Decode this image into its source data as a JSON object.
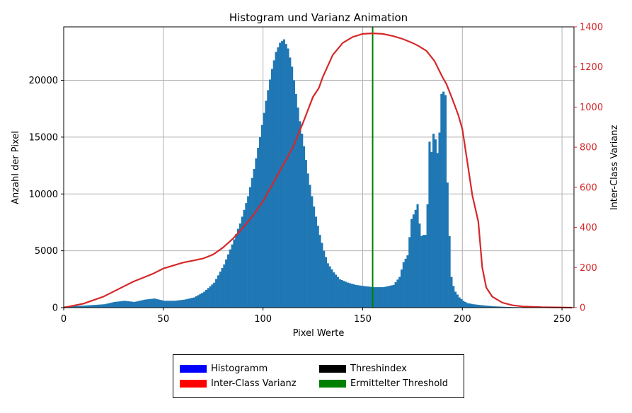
{
  "chart_data": {
    "type": "bar",
    "title": "Histogram und Varianz Animation",
    "xlabel": "Pixel Werte",
    "ylabel": "Anzahl der Pixel",
    "y2label": "Inter-Class Varianz",
    "xlim": [
      0,
      256
    ],
    "ylim": [
      0,
      24700
    ],
    "y2lim": [
      0,
      1400
    ],
    "xticks": [
      0,
      50,
      100,
      150,
      200,
      250
    ],
    "yticks": [
      0,
      5000,
      10000,
      15000,
      20000
    ],
    "y2ticks": [
      0,
      200,
      400,
      600,
      800,
      1000,
      1200,
      1400
    ],
    "grid": true,
    "legend_placement": "bottom-center",
    "colors": {
      "histogram": "#1f77b4",
      "variance": "#d62728",
      "threshold": "#008000",
      "right_axis": "#d62728"
    },
    "histogram_keypoints": {
      "x": [
        0,
        10,
        20,
        25,
        30,
        35,
        40,
        45,
        50,
        55,
        60,
        65,
        70,
        75,
        80,
        85,
        88,
        92,
        95,
        98,
        101,
        104,
        106,
        108,
        110,
        112,
        114,
        116,
        118,
        120,
        122,
        124,
        126,
        128,
        130,
        132,
        135,
        138,
        142,
        146,
        150,
        155,
        160,
        165,
        168,
        170,
        172,
        174,
        176,
        177,
        178,
        179,
        180,
        181,
        182,
        183,
        184,
        185,
        186,
        187,
        188,
        189,
        190,
        191,
        192,
        193,
        194,
        195,
        196,
        198,
        200,
        202,
        205,
        210,
        215,
        220,
        225,
        230,
        240,
        255
      ],
      "y": [
        100,
        180,
        300,
        500,
        600,
        500,
        700,
        800,
        600,
        600,
        700,
        900,
        1400,
        2200,
        3800,
        6000,
        7400,
        9800,
        12200,
        15000,
        18200,
        21000,
        22500,
        23300,
        23600,
        22800,
        21200,
        18800,
        16400,
        14200,
        11800,
        9800,
        8000,
        6400,
        5000,
        3900,
        3100,
        2500,
        2200,
        2000,
        1900,
        1800,
        1800,
        2000,
        2700,
        4000,
        4600,
        7800,
        8600,
        9100,
        7400,
        6300,
        6400,
        6400,
        9100,
        14600,
        13700,
        15300,
        14800,
        13600,
        15400,
        18800,
        19000,
        18700,
        11000,
        6300,
        2700,
        1900,
        1400,
        900,
        600,
        400,
        300,
        200,
        120,
        80,
        50,
        30,
        10,
        0
      ]
    },
    "series": [
      {
        "name": "Inter-Class Varianz",
        "x": [
          0,
          10,
          20,
          25,
          30,
          35,
          40,
          45,
          50,
          55,
          60,
          65,
          70,
          75,
          80,
          85,
          90,
          95,
          100,
          105,
          110,
          115,
          120,
          125,
          128,
          130,
          135,
          140,
          145,
          150,
          155,
          160,
          165,
          170,
          175,
          178,
          182,
          186,
          190,
          192,
          195,
          198,
          200,
          202,
          205,
          208,
          210,
          212,
          215,
          220,
          225,
          230,
          240,
          255
        ],
        "y": [
          0,
          20,
          55,
          80,
          105,
          130,
          150,
          170,
          195,
          210,
          225,
          235,
          245,
          265,
          300,
          345,
          400,
          460,
          530,
          620,
          710,
          800,
          920,
          1050,
          1095,
          1150,
          1260,
          1320,
          1350,
          1365,
          1368,
          1365,
          1355,
          1340,
          1320,
          1305,
          1280,
          1230,
          1150,
          1115,
          1040,
          960,
          890,
          760,
          560,
          430,
          200,
          100,
          55,
          25,
          12,
          6,
          2,
          0
        ]
      }
    ],
    "threshold_x": 155,
    "legend": [
      {
        "label": "Histogramm",
        "color": "#0000ff"
      },
      {
        "label": "Threshindex",
        "color": "#000000"
      },
      {
        "label": "Inter-Class Varianz",
        "color": "#ff0000"
      },
      {
        "label": "Ermittelter Threshold",
        "color": "#008000"
      }
    ]
  }
}
